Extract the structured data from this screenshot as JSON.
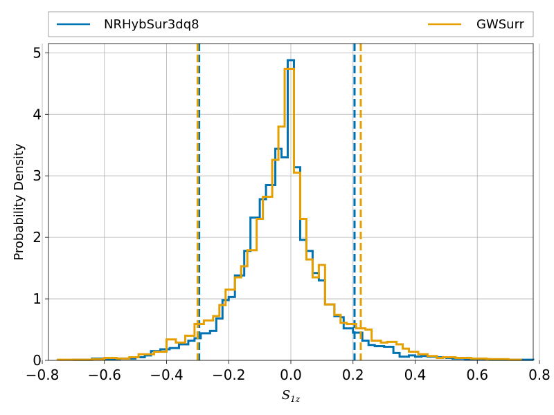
{
  "chart_data": {
    "type": "step-histogram",
    "xlabel_main": "S",
    "xlabel_sub": "1z",
    "ylabel": "Probability Density",
    "xlim": [
      -0.78,
      0.78
    ],
    "ylim": [
      0,
      5.15
    ],
    "xticks": [
      -0.8,
      -0.6,
      -0.4,
      -0.2,
      0.0,
      0.2,
      0.4,
      0.6,
      0.8
    ],
    "xtick_labels": [
      "−0.8",
      "−0.6",
      "−0.4",
      "−0.2",
      "0.0",
      "0.2",
      "0.4",
      "0.6",
      "0.8"
    ],
    "yticks": [
      0,
      1,
      2,
      3,
      4,
      5
    ],
    "ytick_labels": [
      "0",
      "1",
      "2",
      "3",
      "4",
      "5"
    ],
    "grid": true,
    "legend": {
      "placement": "top, above plot",
      "ncol": 2
    },
    "series": [
      {
        "name": "NRHybSur3dq8",
        "color": "#0072b2",
        "steps": [
          [
            -0.7,
            0.01
          ],
          [
            -0.64,
            0.03
          ],
          [
            -0.6,
            0.02
          ],
          [
            -0.55,
            0.03
          ],
          [
            -0.5,
            0.05
          ],
          [
            -0.47,
            0.08
          ],
          [
            -0.45,
            0.15
          ],
          [
            -0.42,
            0.18
          ],
          [
            -0.39,
            0.2
          ],
          [
            -0.36,
            0.26
          ],
          [
            -0.33,
            0.32
          ],
          [
            -0.31,
            0.36
          ],
          [
            -0.29,
            0.44
          ],
          [
            -0.26,
            0.48
          ],
          [
            -0.24,
            0.68
          ],
          [
            -0.22,
            0.98
          ],
          [
            -0.2,
            1.03
          ],
          [
            -0.18,
            1.38
          ],
          [
            -0.15,
            1.78
          ],
          [
            -0.13,
            2.32
          ],
          [
            -0.1,
            2.62
          ],
          [
            -0.08,
            2.85
          ],
          [
            -0.05,
            3.44
          ],
          [
            -0.03,
            3.3
          ],
          [
            -0.01,
            4.88
          ],
          [
            0.01,
            3.14
          ],
          [
            0.03,
            1.96
          ],
          [
            0.05,
            1.78
          ],
          [
            0.07,
            1.42
          ],
          [
            0.09,
            1.3
          ],
          [
            0.11,
            0.91
          ],
          [
            0.14,
            0.72
          ],
          [
            0.16,
            0.7
          ],
          [
            0.17,
            0.52
          ],
          [
            0.2,
            0.45
          ],
          [
            0.23,
            0.32
          ],
          [
            0.25,
            0.25
          ],
          [
            0.27,
            0.23
          ],
          [
            0.3,
            0.22
          ],
          [
            0.33,
            0.12
          ],
          [
            0.35,
            0.06
          ],
          [
            0.38,
            0.08
          ],
          [
            0.4,
            0.06
          ],
          [
            0.42,
            0.07
          ],
          [
            0.44,
            0.06
          ],
          [
            0.47,
            0.05
          ],
          [
            0.5,
            0.04
          ],
          [
            0.52,
            0.03
          ],
          [
            0.56,
            0.02
          ],
          [
            0.6,
            0.02
          ],
          [
            0.64,
            0.01
          ],
          [
            0.7,
            0.01
          ],
          [
            0.74,
            0.01
          ]
        ],
        "interval_90": [
          -0.295,
          0.205
        ]
      },
      {
        "name": "GWSurr",
        "color": "#e69f00",
        "steps": [
          [
            -0.75,
            0.01
          ],
          [
            -0.69,
            0.01
          ],
          [
            -0.64,
            0.02
          ],
          [
            -0.6,
            0.04
          ],
          [
            -0.56,
            0.03
          ],
          [
            -0.52,
            0.05
          ],
          [
            -0.49,
            0.1
          ],
          [
            -0.44,
            0.14
          ],
          [
            -0.4,
            0.34
          ],
          [
            -0.37,
            0.29
          ],
          [
            -0.34,
            0.4
          ],
          [
            -0.31,
            0.59
          ],
          [
            -0.28,
            0.65
          ],
          [
            -0.25,
            0.72
          ],
          [
            -0.23,
            0.9
          ],
          [
            -0.21,
            1.15
          ],
          [
            -0.18,
            1.35
          ],
          [
            -0.16,
            1.53
          ],
          [
            -0.14,
            1.79
          ],
          [
            -0.11,
            2.3
          ],
          [
            -0.09,
            2.66
          ],
          [
            -0.06,
            3.26
          ],
          [
            -0.04,
            3.8
          ],
          [
            -0.02,
            4.74
          ],
          [
            0.01,
            3.05
          ],
          [
            0.03,
            2.3
          ],
          [
            0.05,
            1.64
          ],
          [
            0.07,
            1.35
          ],
          [
            0.09,
            1.55
          ],
          [
            0.11,
            0.91
          ],
          [
            0.14,
            0.74
          ],
          [
            0.16,
            0.61
          ],
          [
            0.18,
            0.59
          ],
          [
            0.21,
            0.52
          ],
          [
            0.24,
            0.5
          ],
          [
            0.26,
            0.32
          ],
          [
            0.29,
            0.29
          ],
          [
            0.31,
            0.3
          ],
          [
            0.34,
            0.26
          ],
          [
            0.36,
            0.19
          ],
          [
            0.38,
            0.14
          ],
          [
            0.41,
            0.1
          ],
          [
            0.44,
            0.07
          ],
          [
            0.47,
            0.04
          ],
          [
            0.49,
            0.05
          ],
          [
            0.53,
            0.04
          ],
          [
            0.58,
            0.03
          ],
          [
            0.63,
            0.02
          ],
          [
            0.7,
            0.01
          ]
        ],
        "interval_90": [
          -0.3,
          0.225
        ]
      }
    ]
  }
}
